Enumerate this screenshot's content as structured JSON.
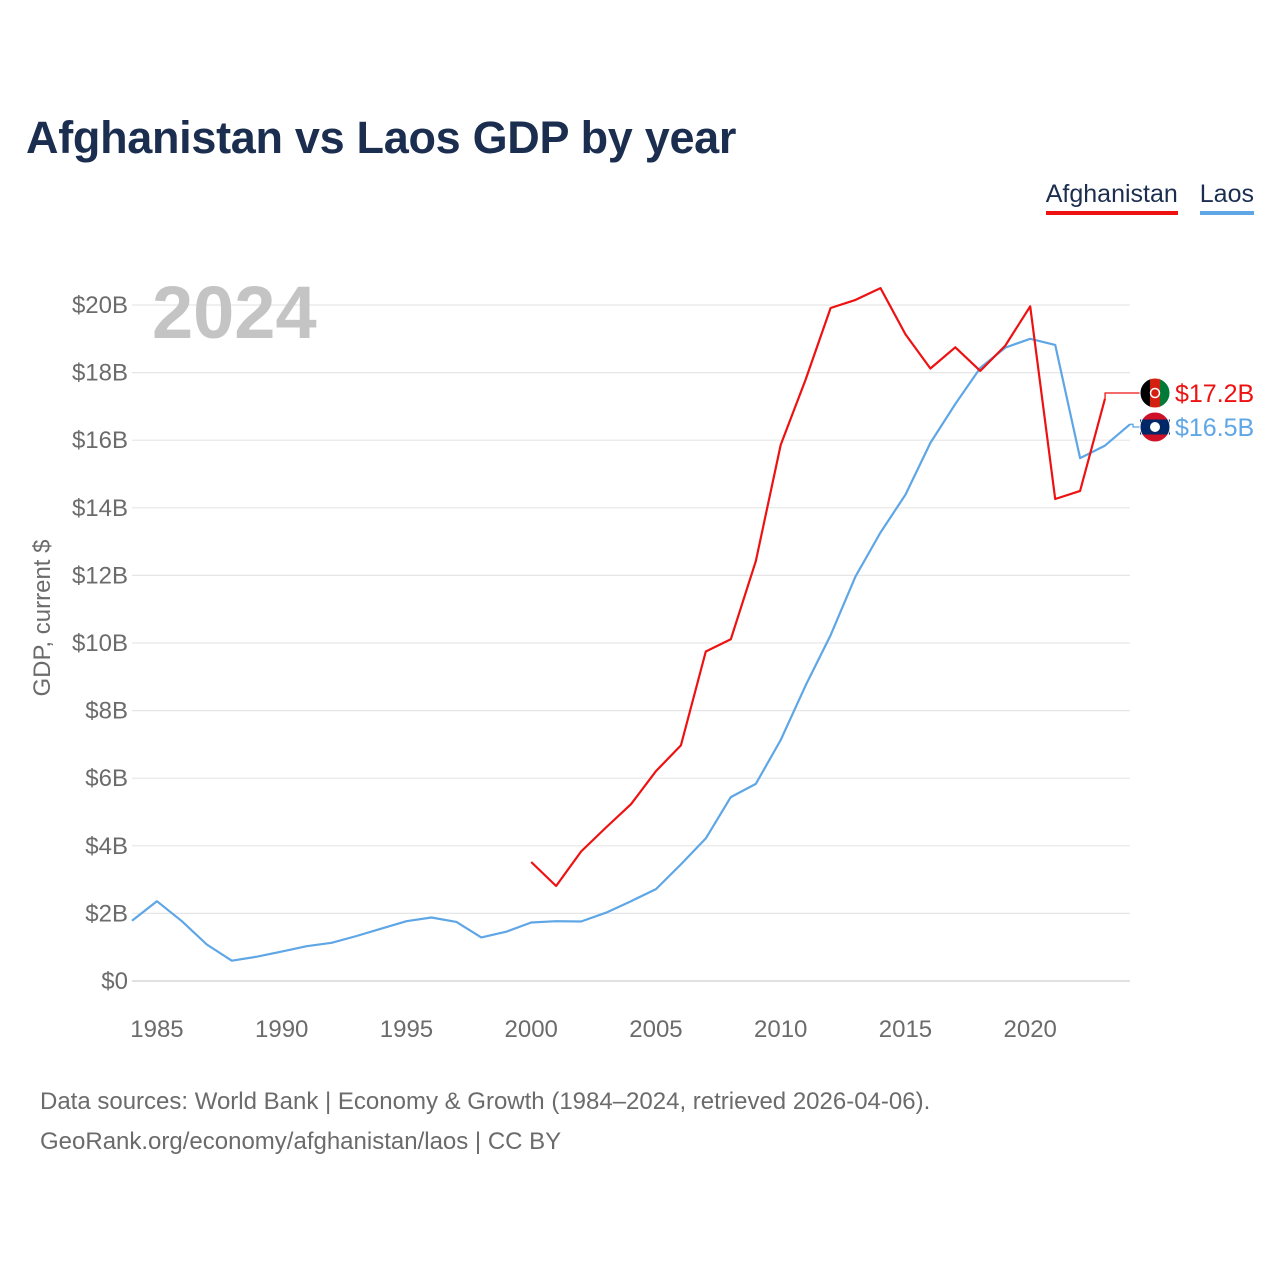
{
  "title": "Afghanistan vs Laos GDP by year",
  "legend": {
    "afghanistan": "Afghanistan",
    "laos": "Laos"
  },
  "year_watermark": "2024",
  "footer": {
    "line1": "Data sources: World Bank | Economy & Growth (1984–2024, retrieved 2026-04-06).",
    "line2": "GeoRank.org/economy/afghanistan/laos | CC BY"
  },
  "colors": {
    "afghanistan": "#ee1111",
    "laos": "#5ea6e6",
    "title": "#1b2e4f",
    "grid": "#e6e6e6",
    "axis_text": "#6b6b6b",
    "watermark": "#c4c4c4"
  },
  "chart_data": {
    "type": "line",
    "title": "Afghanistan vs Laos GDP by year",
    "ylabel": "GDP, current $",
    "xlabel": "",
    "xlim": [
      1984,
      2024
    ],
    "ylim": [
      -0.5,
      20.5
    ],
    "yticks": [
      0,
      2,
      4,
      6,
      8,
      10,
      12,
      14,
      16,
      18,
      20
    ],
    "ytick_labels": [
      "$0",
      "$2B",
      "$4B",
      "$6B",
      "$8B",
      "$10B",
      "$12B",
      "$14B",
      "$16B",
      "$18B",
      "$20B"
    ],
    "xticks": [
      1985,
      1990,
      1995,
      2000,
      2005,
      2010,
      2015,
      2020
    ],
    "xtick_labels": [
      "1985",
      "1990",
      "1995",
      "2000",
      "2005",
      "2010",
      "2015",
      "2020"
    ],
    "series": [
      {
        "name": "Afghanistan",
        "color": "#ee1111",
        "end_label": "$17.2B",
        "x": [
          2000,
          2001,
          2002,
          2003,
          2004,
          2005,
          2006,
          2007,
          2008,
          2009,
          2010,
          2011,
          2012,
          2013,
          2014,
          2015,
          2016,
          2017,
          2018,
          2019,
          2020,
          2021,
          2022,
          2023
        ],
        "values": [
          3.52,
          2.81,
          3.83,
          4.54,
          5.23,
          6.21,
          6.97,
          9.75,
          10.11,
          12.42,
          15.86,
          17.8,
          19.91,
          20.15,
          20.5,
          19.13,
          18.12,
          18.75,
          18.05,
          18.8,
          19.96,
          14.26,
          14.5,
          17.23
        ]
      },
      {
        "name": "Laos",
        "color": "#5ea6e6",
        "end_label": "$16.5B",
        "x": [
          1984,
          1985,
          1986,
          1987,
          1988,
          1989,
          1990,
          1991,
          1992,
          1993,
          1994,
          1995,
          1996,
          1997,
          1998,
          1999,
          2000,
          2001,
          2002,
          2003,
          2004,
          2005,
          2006,
          2007,
          2008,
          2009,
          2010,
          2011,
          2012,
          2013,
          2014,
          2015,
          2016,
          2017,
          2018,
          2019,
          2020,
          2021,
          2022,
          2023,
          2024
        ],
        "values": [
          1.78,
          2.36,
          1.77,
          1.08,
          0.6,
          0.72,
          0.87,
          1.03,
          1.13,
          1.33,
          1.55,
          1.77,
          1.88,
          1.75,
          1.29,
          1.46,
          1.73,
          1.77,
          1.76,
          2.02,
          2.36,
          2.72,
          3.45,
          4.22,
          5.44,
          5.83,
          7.13,
          8.75,
          10.23,
          11.97,
          13.27,
          14.39,
          15.92,
          17.07,
          18.14,
          18.74,
          19.0,
          18.82,
          15.47,
          15.84,
          16.47
        ]
      }
    ]
  }
}
